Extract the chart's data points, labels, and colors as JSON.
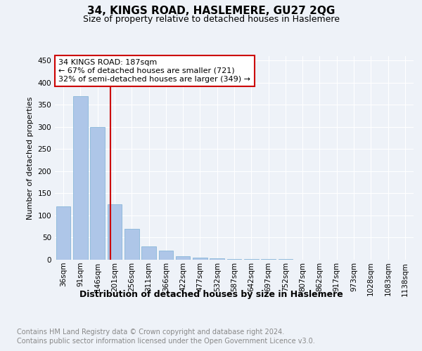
{
  "title": "34, KINGS ROAD, HASLEMERE, GU27 2QG",
  "subtitle": "Size of property relative to detached houses in Haslemere",
  "xlabel": "Distribution of detached houses by size in Haslemere",
  "ylabel": "Number of detached properties",
  "categories": [
    "36sqm",
    "91sqm",
    "146sqm",
    "201sqm",
    "256sqm",
    "311sqm",
    "366sqm",
    "422sqm",
    "477sqm",
    "532sqm",
    "587sqm",
    "642sqm",
    "697sqm",
    "752sqm",
    "807sqm",
    "862sqm",
    "917sqm",
    "973sqm",
    "1028sqm",
    "1083sqm",
    "1138sqm"
  ],
  "values": [
    120,
    370,
    300,
    125,
    70,
    30,
    20,
    8,
    4,
    3,
    2,
    1,
    1,
    1,
    0,
    0,
    0,
    0,
    0,
    0,
    0
  ],
  "bar_color": "#aec6e8",
  "bar_edgecolor": "#7aafd4",
  "ylim": [
    0,
    460
  ],
  "annotation_text": "34 KINGS ROAD: 187sqm\n← 67% of detached houses are smaller (721)\n32% of semi-detached houses are larger (349) →",
  "annotation_box_color": "#ffffff",
  "annotation_box_edgecolor": "#cc0000",
  "property_line_color": "#cc0000",
  "footer_line1": "Contains HM Land Registry data © Crown copyright and database right 2024.",
  "footer_line2": "Contains public sector information licensed under the Open Government Licence v3.0.",
  "background_color": "#eef2f8",
  "plot_background": "#eef2f8",
  "grid_color": "#ffffff",
  "title_fontsize": 11,
  "subtitle_fontsize": 9,
  "ylabel_fontsize": 8,
  "xlabel_fontsize": 9,
  "footer_fontsize": 7,
  "tick_fontsize": 7.5,
  "annotation_fontsize": 8
}
